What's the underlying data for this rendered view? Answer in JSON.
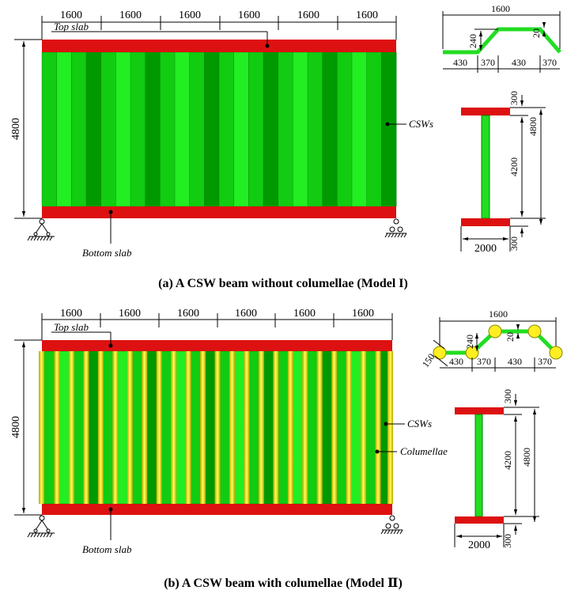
{
  "panel_a": {
    "caption": "(a) A CSW beam without columellae (Model I)",
    "segment_dims": [
      "1600",
      "1600",
      "1600",
      "1600",
      "1600",
      "1600"
    ],
    "height_dim": "4800",
    "top_slab_label": "Top slab",
    "bottom_slab_label": "Bottom slab",
    "csw_label": "CSWs",
    "profile": {
      "total": "1600",
      "depth": "240",
      "thickness": "20",
      "segments": [
        "430",
        "370",
        "430",
        "370"
      ]
    },
    "section": {
      "top_flange": "300",
      "web_height": "4200",
      "total_height": "4800",
      "flange_width": "2000",
      "bottom_flange": "300"
    }
  },
  "panel_b": {
    "caption": "(b) A CSW beam with columellae (Model Ⅱ)",
    "segment_dims": [
      "1600",
      "1600",
      "1600",
      "1600",
      "1600",
      "1600"
    ],
    "height_dim": "4800",
    "top_slab_label": "Top slab",
    "bottom_slab_label": "Bottom slab",
    "csw_label": "CSWs",
    "columellae_label": "Columellae",
    "profile": {
      "total": "1600",
      "depth": "240",
      "thickness": "20",
      "diameter": "150",
      "segments": [
        "430",
        "370",
        "430",
        "370"
      ]
    },
    "section": {
      "top_flange": "300",
      "web_height": "4200",
      "total_height": "4800",
      "flange_width": "2000",
      "bottom_flange": "300"
    }
  },
  "colors": {
    "slab": "#dd1111",
    "web_light": "#22ee22",
    "web_mid": "#11cc11",
    "web_dark": "#009900",
    "columella": "#ffee33"
  }
}
